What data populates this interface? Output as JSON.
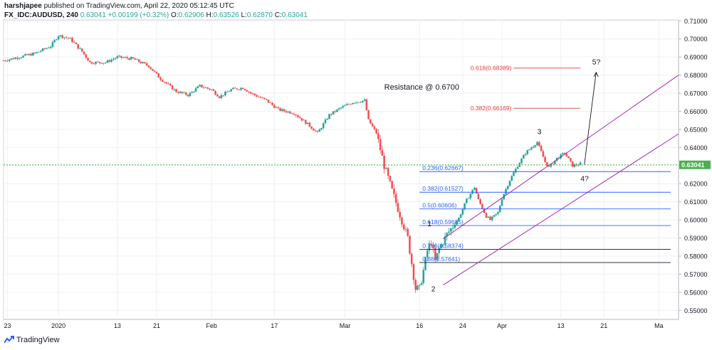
{
  "header": {
    "author": "harshjapee",
    "published": "published on TradingView.com, April 22, 2020 05:12:45 UTC",
    "symbol": "FX_IDC:AUDUSD, 240",
    "last": "0.63041",
    "change": "+0.00199 (+0.32%)",
    "o_label": "O:",
    "o": "0.62906",
    "h_label": "H:",
    "h": "0.63526",
    "l_label": "L:",
    "l": "0.62870",
    "c_label": "C:",
    "c": "0.63041"
  },
  "brand": {
    "label": "TradingView"
  },
  "colors": {
    "up": "#26a69a",
    "down": "#ef5350",
    "channel": "#9c27b0",
    "fib": "#2962ff",
    "target": "#e53935",
    "price_line": "#4caf50",
    "grid": "#eef0f4"
  },
  "chart_data": {
    "type": "candlestick",
    "ylim": [
      0.545,
      0.7105
    ],
    "y_ticks": [
      "0.71000",
      "0.70000",
      "0.69000",
      "0.68000",
      "0.67000",
      "0.66000",
      "0.65000",
      "0.64000",
      "0.63000",
      "0.62000",
      "0.61000",
      "0.60000",
      "0.59000",
      "0.58000",
      "0.57000",
      "0.56000",
      "0.55000"
    ],
    "x_ticks": [
      "23",
      "2020",
      "13",
      "21",
      "Feb",
      "17",
      "Mar",
      "16",
      "24",
      "Apr",
      "13",
      "21",
      "Ma"
    ],
    "current_price": {
      "value": 0.63041,
      "label": "0.63041"
    },
    "price_path": [
      [
        0,
        0.688
      ],
      [
        4,
        0.69
      ],
      [
        8,
        0.692
      ],
      [
        12,
        0.696
      ],
      [
        14,
        0.702
      ],
      [
        17,
        0.7
      ],
      [
        20,
        0.693
      ],
      [
        22,
        0.687
      ],
      [
        26,
        0.687
      ],
      [
        29,
        0.69
      ],
      [
        33,
        0.689
      ],
      [
        37,
        0.685
      ],
      [
        40,
        0.678
      ],
      [
        44,
        0.671
      ],
      [
        47,
        0.669
      ],
      [
        50,
        0.674
      ],
      [
        53,
        0.672
      ],
      [
        55,
        0.668
      ],
      [
        58,
        0.672
      ],
      [
        61,
        0.673
      ],
      [
        63,
        0.67
      ],
      [
        67,
        0.666
      ],
      [
        70,
        0.661
      ],
      [
        74,
        0.659
      ],
      [
        78,
        0.652
      ],
      [
        80,
        0.648
      ],
      [
        83,
        0.658
      ],
      [
        86,
        0.662
      ],
      [
        89,
        0.665
      ],
      [
        92,
        0.666
      ],
      [
        93,
        0.655
      ],
      [
        95,
        0.648
      ],
      [
        97,
        0.63
      ],
      [
        99,
        0.616
      ],
      [
        101,
        0.603
      ],
      [
        103,
        0.59
      ],
      [
        105,
        0.562
      ],
      [
        106,
        0.562
      ],
      [
        107,
        0.572
      ],
      [
        108,
        0.583
      ],
      [
        109,
        0.588
      ],
      [
        110,
        0.577
      ],
      [
        111,
        0.584
      ],
      [
        113,
        0.592
      ],
      [
        116,
        0.601
      ],
      [
        118,
        0.611
      ],
      [
        120,
        0.618
      ],
      [
        121,
        0.611
      ],
      [
        123,
        0.602
      ],
      [
        124,
        0.6
      ],
      [
        126,
        0.604
      ],
      [
        127,
        0.612
      ],
      [
        129,
        0.622
      ],
      [
        131,
        0.63
      ],
      [
        133,
        0.637
      ],
      [
        135,
        0.641
      ],
      [
        136,
        0.643
      ],
      [
        138,
        0.632
      ],
      [
        139,
        0.629
      ],
      [
        141,
        0.634
      ],
      [
        143,
        0.637
      ],
      [
        145,
        0.63
      ],
      [
        147,
        0.631
      ]
    ],
    "fib_levels": [
      {
        "label": "0.236(0.62667)",
        "value": 0.62667
      },
      {
        "label": "0.382(0.61527)",
        "value": 0.61527
      },
      {
        "label": "0.5(0.60606)",
        "value": 0.60606
      },
      {
        "label": "0.618(0.59685)",
        "value": 0.59685
      },
      {
        "label": "0.786(0.58374)",
        "value": 0.58374
      },
      {
        "label": "0.88(0.57641)",
        "value": 0.57641
      }
    ],
    "targets": [
      {
        "label": "0.618(0.68389)",
        "value": 0.68389
      },
      {
        "label": "0.382(0.66169)",
        "value": 0.66169
      }
    ],
    "annotations": [
      {
        "text": "Resistance @ 0.6700"
      },
      {
        "text": "1"
      },
      {
        "text": "2"
      },
      {
        "text": "3"
      },
      {
        "text": "4?"
      },
      {
        "text": "5?"
      }
    ]
  }
}
